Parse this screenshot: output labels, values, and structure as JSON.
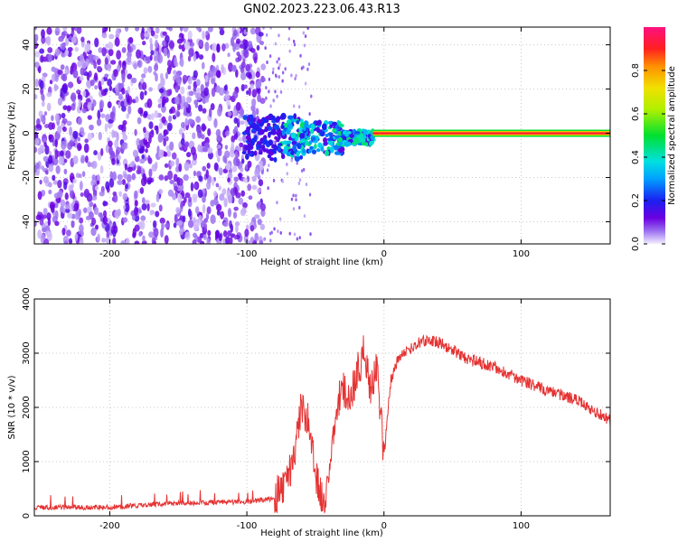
{
  "title": "GN02.2023.223.06.43.R13",
  "colors": {
    "snr_line": "#e53232",
    "axis": "#000000",
    "grid": "#c8c8c8"
  },
  "colorbar": {
    "label": "Normalized spectral amplitude",
    "ticks": [
      "0.0",
      "0.2",
      "0.4",
      "0.6",
      "0.8"
    ],
    "range": [
      0,
      1
    ]
  },
  "chart_data": [
    {
      "type": "heatmap",
      "name": "spectrogram",
      "xlabel": "Height of straight line (km)",
      "ylabel": "Frequency (Hz)",
      "xlim": [
        -255,
        165
      ],
      "ylim": [
        -50,
        48
      ],
      "xticks": [
        "-200",
        "-100",
        "0",
        "100"
      ],
      "yticks": [
        "40",
        "20",
        "0",
        "-20",
        "-40"
      ],
      "grid": true,
      "regions": [
        {
          "x": [
            -255,
            -90
          ],
          "description_level": 0.12
        },
        {
          "x": [
            -90,
            -8
          ],
          "description_level": 0.35
        },
        {
          "x": [
            -8,
            165
          ],
          "freq": 0,
          "level": 0.9
        }
      ]
    },
    {
      "type": "line",
      "name": "snr",
      "xlabel": "Height of straight line (km)",
      "ylabel": "SNR (10 * v/v)",
      "xlim": [
        -255,
        165
      ],
      "ylim": [
        0,
        4000
      ],
      "xticks": [
        "-200",
        "-100",
        "0",
        "100"
      ],
      "yticks": [
        "0",
        "1000",
        "2000",
        "3000",
        "4000"
      ],
      "grid": true,
      "series": [
        {
          "x": [
            -255,
            -200,
            -150,
            -100,
            -80,
            -70,
            -65,
            -60,
            -55,
            -50,
            -45,
            -40,
            -35,
            -30,
            -25,
            -20,
            -15,
            -10,
            -5,
            0,
            5,
            10,
            20,
            30,
            40,
            60,
            80,
            100,
            120,
            140,
            165
          ],
          "y": [
            150,
            160,
            230,
            260,
            320,
            700,
            1200,
            2050,
            1700,
            800,
            300,
            600,
            1900,
            2400,
            2100,
            2600,
            3000,
            2400,
            2700,
            1100,
            2500,
            2900,
            3100,
            3250,
            3200,
            2900,
            2750,
            2500,
            2300,
            2150,
            1750
          ]
        }
      ]
    }
  ]
}
